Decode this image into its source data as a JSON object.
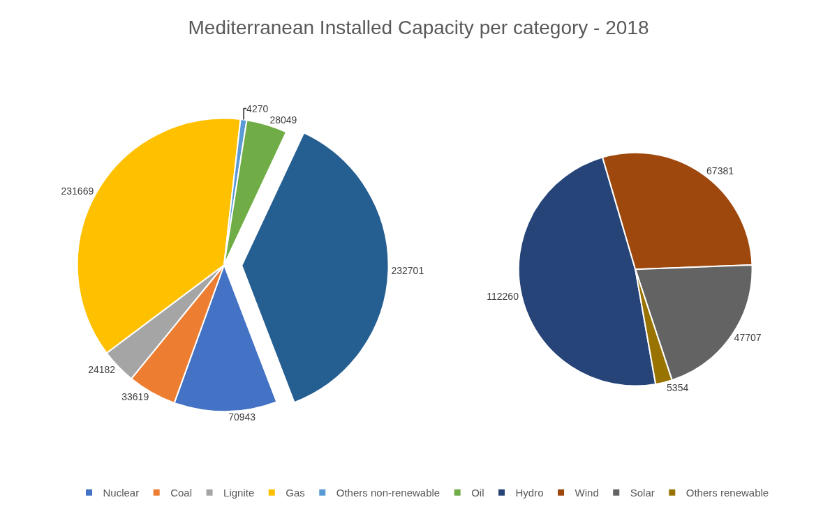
{
  "chart_data": [
    {
      "type": "pie",
      "title": "Mediterranean Installed Capacity per category - 2018",
      "categories": [
        "Nuclear",
        "Coal",
        "Lignite",
        "Gas",
        "Others non-renewable",
        "Oil",
        null
      ],
      "values": [
        70943,
        33619,
        24182,
        231669,
        4270,
        28049,
        232701
      ],
      "colors": [
        "#4472c4",
        "#ed7d31",
        "#a5a5a5",
        "#ffc000",
        "#5b9bd5",
        "#70ad47",
        "#255e91"
      ],
      "data_labels": true,
      "legend": "bottom"
    },
    {
      "type": "pie",
      "categories": [
        "Hydro",
        "Wind",
        "Solar",
        "Others renewable"
      ],
      "values": [
        112260,
        67381,
        47707,
        5354
      ],
      "colors": [
        "#264478",
        "#9e480e",
        "#636363",
        "#997300"
      ],
      "data_labels": true,
      "legend": "bottom"
    }
  ]
}
